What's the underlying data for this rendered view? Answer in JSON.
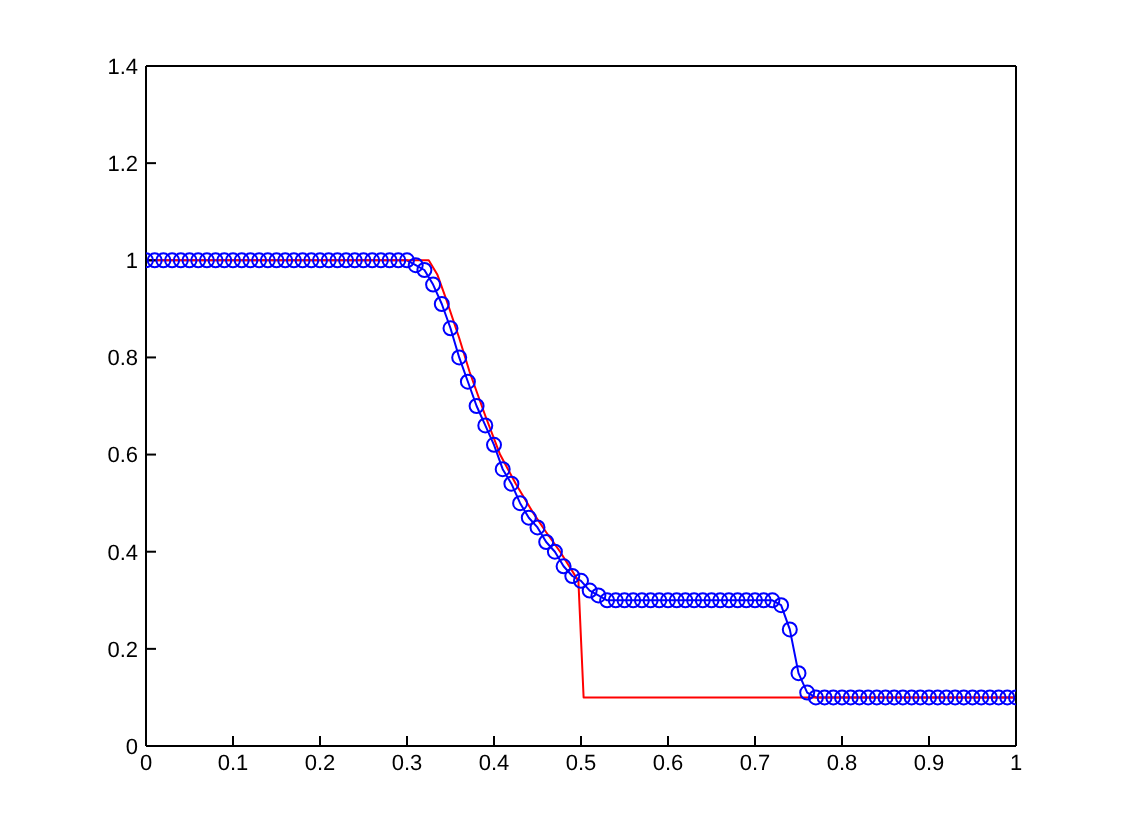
{
  "chart_data": {
    "type": "line",
    "series": [
      {
        "color": "#0000ff",
        "marker": "circle",
        "x": [
          0,
          0.01,
          0.02,
          0.03,
          0.04,
          0.05,
          0.06,
          0.07,
          0.08,
          0.09,
          0.1,
          0.11,
          0.12,
          0.13,
          0.14,
          0.15,
          0.16,
          0.17,
          0.18,
          0.19,
          0.2,
          0.21,
          0.22,
          0.23,
          0.24,
          0.25,
          0.26,
          0.27,
          0.28,
          0.29,
          0.3,
          0.31,
          0.32,
          0.33,
          0.34,
          0.35,
          0.36,
          0.37,
          0.38,
          0.39,
          0.4,
          0.41,
          0.42,
          0.43,
          0.44,
          0.45,
          0.46,
          0.47,
          0.48,
          0.49,
          0.5,
          0.51,
          0.52,
          0.53,
          0.54,
          0.55,
          0.56,
          0.57,
          0.58,
          0.59,
          0.6,
          0.61,
          0.62,
          0.63,
          0.64,
          0.65,
          0.66,
          0.67,
          0.68,
          0.69,
          0.7,
          0.71,
          0.72,
          0.73,
          0.74,
          0.75,
          0.76,
          0.77,
          0.78,
          0.79,
          0.8,
          0.81,
          0.82,
          0.83,
          0.84,
          0.85,
          0.86,
          0.87,
          0.88,
          0.89,
          0.9,
          0.91,
          0.92,
          0.93,
          0.94,
          0.95,
          0.96,
          0.97,
          0.98,
          0.99,
          1
        ],
        "values": [
          1,
          1,
          1,
          1,
          1,
          1,
          1,
          1,
          1,
          1,
          1,
          1,
          1,
          1,
          1,
          1,
          1,
          1,
          1,
          1,
          1,
          1,
          1,
          1,
          1,
          1,
          1,
          1,
          1,
          1,
          1,
          0.99,
          0.98,
          0.95,
          0.91,
          0.86,
          0.8,
          0.75,
          0.7,
          0.66,
          0.62,
          0.57,
          0.54,
          0.5,
          0.47,
          0.45,
          0.42,
          0.4,
          0.37,
          0.35,
          0.34,
          0.32,
          0.31,
          0.3,
          0.3,
          0.3,
          0.3,
          0.3,
          0.3,
          0.3,
          0.3,
          0.3,
          0.3,
          0.3,
          0.3,
          0.3,
          0.3,
          0.3,
          0.3,
          0.3,
          0.3,
          0.3,
          0.3,
          0.29,
          0.24,
          0.15,
          0.11,
          0.1,
          0.1,
          0.1,
          0.1,
          0.1,
          0.1,
          0.1,
          0.1,
          0.1,
          0.1,
          0.1,
          0.1,
          0.1,
          0.1,
          0.1,
          0.1,
          0.1,
          0.1,
          0.1,
          0.1,
          0.1,
          0.1,
          0.1,
          0.1
        ]
      },
      {
        "color": "#ff0000",
        "marker": "none",
        "x": [
          0,
          0.325,
          0.335,
          0.345,
          0.36,
          0.372,
          0.39,
          0.407,
          0.425,
          0.445,
          0.46,
          0.476,
          0.497,
          0.503,
          1
        ],
        "values": [
          1,
          1,
          0.97,
          0.92,
          0.84,
          0.77,
          0.68,
          0.6,
          0.54,
          0.48,
          0.44,
          0.4,
          0.34,
          0.1,
          0.1
        ]
      }
    ],
    "xlim": [
      0,
      1
    ],
    "xticks": [
      0,
      0.1,
      0.2,
      0.3,
      0.4,
      0.5,
      0.6,
      0.7,
      0.8,
      0.9,
      1
    ],
    "ylim": [
      0,
      1.4
    ],
    "yticks": [
      0,
      0.2,
      0.4,
      0.6,
      0.8,
      1,
      1.2,
      1.4
    ]
  }
}
